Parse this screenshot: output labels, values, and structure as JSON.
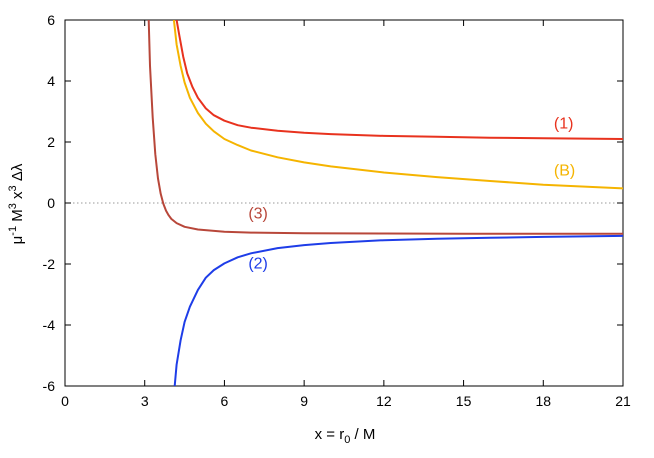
{
  "chart_data": {
    "type": "line",
    "title": "",
    "xlabel": {
      "main": "x = r",
      "sub": "0",
      "tail": " / M"
    },
    "ylabel": {
      "p1": "μ",
      "s1": "-1",
      "p2": " M",
      "s2": "3",
      "p3": " x",
      "s3": "3",
      "p4": " Δλ"
    },
    "xlim": [
      0,
      21
    ],
    "ylim": [
      -6,
      6
    ],
    "xticks": [
      "0",
      "3",
      "6",
      "9",
      "12",
      "15",
      "18",
      "21"
    ],
    "yticks": [
      "-6",
      "-4",
      "-2",
      "0",
      "2",
      "4",
      "6"
    ],
    "reference_line": {
      "y": 0,
      "style": "dotted",
      "color": "#999999"
    },
    "grid": false,
    "series": [
      {
        "name": "(1)",
        "color": "#e8321e",
        "x": [
          4.2,
          4.3,
          4.45,
          4.6,
          4.8,
          5.0,
          5.3,
          5.6,
          6.0,
          6.5,
          7.0,
          8.0,
          9.0,
          10.0,
          12.0,
          14.0,
          16.0,
          18.0,
          21.0
        ],
        "y": [
          6.0,
          5.5,
          4.8,
          4.25,
          3.8,
          3.45,
          3.1,
          2.88,
          2.7,
          2.55,
          2.47,
          2.37,
          2.3,
          2.26,
          2.2,
          2.17,
          2.14,
          2.12,
          2.1
        ],
        "label": {
          "text": "(1)",
          "x": 18.4,
          "y": 2.45
        }
      },
      {
        "name": "(B)",
        "color": "#f5b400",
        "x": [
          4.1,
          4.2,
          4.35,
          4.5,
          4.7,
          5.0,
          5.3,
          5.6,
          6.0,
          6.5,
          7.0,
          8.0,
          9.0,
          10.0,
          12.0,
          14.0,
          16.0,
          18.0,
          21.0
        ],
        "y": [
          6.0,
          5.2,
          4.5,
          3.95,
          3.45,
          2.95,
          2.6,
          2.35,
          2.1,
          1.9,
          1.72,
          1.5,
          1.33,
          1.2,
          1.0,
          0.85,
          0.72,
          0.6,
          0.48
        ],
        "label": {
          "text": "(B)",
          "x": 18.4,
          "y": 0.9
        }
      },
      {
        "name": "(3)",
        "color": "#b8473a",
        "x": [
          3.15,
          3.2,
          3.3,
          3.4,
          3.5,
          3.6,
          3.7,
          3.8,
          3.9,
          4.0,
          4.2,
          4.5,
          5.0,
          6.0,
          7.0,
          9.0,
          12.0,
          15.0,
          18.0,
          21.0
        ],
        "y": [
          6.0,
          4.5,
          2.8,
          1.6,
          0.8,
          0.3,
          -0.02,
          -0.25,
          -0.4,
          -0.52,
          -0.66,
          -0.78,
          -0.87,
          -0.94,
          -0.97,
          -0.99,
          -1.0,
          -1.01,
          -1.01,
          -1.01
        ],
        "label": {
          "text": "(3)",
          "x": 6.9,
          "y": -0.5
        }
      },
      {
        "name": "(2)",
        "color": "#1e3de8",
        "x": [
          4.13,
          4.2,
          4.35,
          4.5,
          4.7,
          5.0,
          5.3,
          5.6,
          6.0,
          6.5,
          7.0,
          8.0,
          9.0,
          10.0,
          12.0,
          14.0,
          16.0,
          18.0,
          21.0
        ],
        "y": [
          -6.0,
          -5.3,
          -4.5,
          -3.9,
          -3.4,
          -2.85,
          -2.45,
          -2.2,
          -1.98,
          -1.78,
          -1.65,
          -1.48,
          -1.38,
          -1.31,
          -1.22,
          -1.17,
          -1.14,
          -1.11,
          -1.08
        ],
        "label": {
          "text": "(2)",
          "x": 6.9,
          "y": -2.15
        }
      }
    ]
  }
}
